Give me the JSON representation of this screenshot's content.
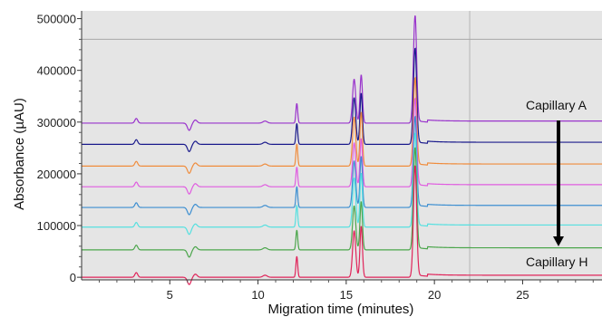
{
  "chart_data": {
    "type": "line",
    "xlabel": "Migration time (minutes)",
    "ylabel": "Absorbance (µAU)",
    "xlim": [
      0,
      29.5
    ],
    "ylim": [
      -5000,
      515000
    ],
    "xticks": [
      5,
      10,
      15,
      20,
      25
    ],
    "yticks": [
      0,
      100000,
      200000,
      300000,
      400000,
      500000
    ],
    "ytick_labels": [
      "0",
      "100000",
      "200000",
      "300000",
      "400000",
      "500000"
    ],
    "grid": false,
    "vertical_line_x": 22,
    "horizontal_line_y": 460000,
    "annotations": {
      "top_label": "Capillary A",
      "bottom_label": "Capillary H",
      "arrow": "down"
    },
    "peaks": [
      {
        "x": 3.1,
        "height": 9000,
        "width": 0.08
      },
      {
        "x": 6.1,
        "height": -14000,
        "width": 0.1
      },
      {
        "x": 6.45,
        "height": 6000,
        "width": 0.1
      },
      {
        "x": 10.4,
        "height": 4000,
        "width": 0.12
      },
      {
        "x": 12.2,
        "height": 45000,
        "width": 0.05
      },
      {
        "x": 15.45,
        "height": 100000,
        "width": 0.09
      },
      {
        "x": 15.85,
        "height": 110000,
        "width": 0.07
      },
      {
        "x": 18.9,
        "height": 195000,
        "width": 0.09
      }
    ],
    "series": [
      {
        "color": "#9933cc",
        "baseline": 298000,
        "main_peak": 505000
      },
      {
        "color": "#1a1a8c",
        "baseline": 257000,
        "main_peak": 442000
      },
      {
        "color": "#f08c3c",
        "baseline": 215000,
        "main_peak": 385000
      },
      {
        "color": "#e05ce0",
        "baseline": 175000,
        "main_peak": 345000
      },
      {
        "color": "#3d8fd1",
        "baseline": 135000,
        "main_peak": 310000
      },
      {
        "color": "#55e0e0",
        "baseline": 97000,
        "main_peak": 278000
      },
      {
        "color": "#4ca64c",
        "baseline": 53000,
        "main_peak": 250000
      },
      {
        "color": "#e0245a",
        "baseline": 0,
        "main_peak": 215000
      }
    ]
  }
}
